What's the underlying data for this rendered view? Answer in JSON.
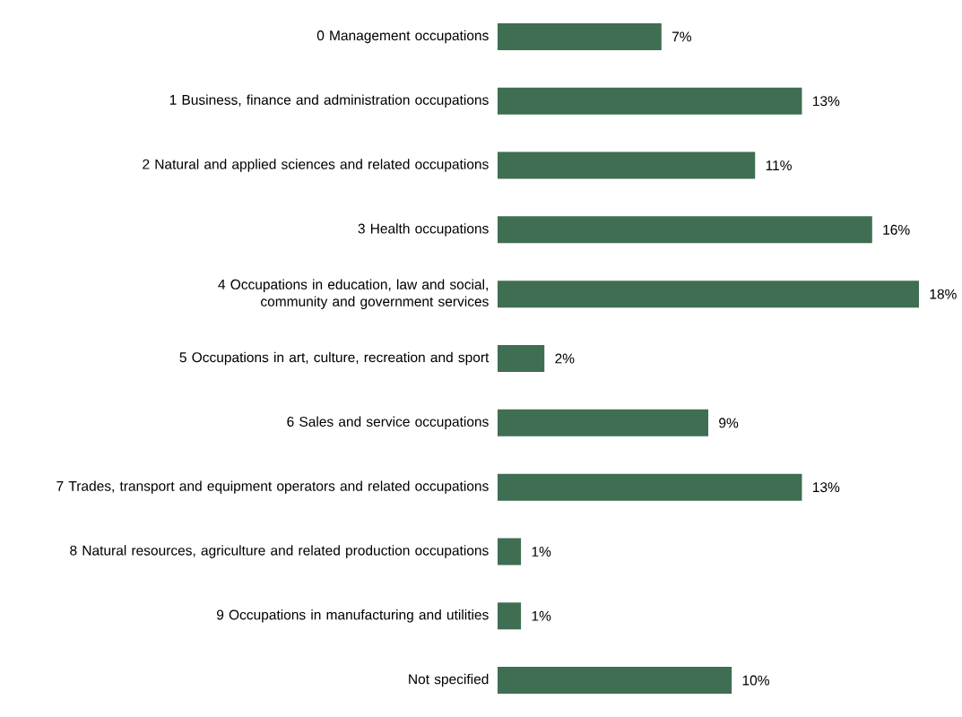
{
  "chart_data": {
    "type": "bar",
    "orientation": "horizontal",
    "color": "#3f6e52",
    "categories": [
      "0 Management occupations",
      "1 Business, finance and administration occupations",
      "2 Natural and applied sciences and related occupations",
      "3 Health occupations",
      "4 Occupations in education, law and social, community and government services",
      "5 Occupations in art, culture, recreation and sport",
      "6 Sales and service occupations",
      "7 Trades, transport and equipment operators and related occupations",
      "8 Natural resources, agriculture and related production occupations",
      "9 Occupations in manufacturing and utilities",
      "Not specified"
    ],
    "values": [
      7,
      13,
      11,
      16,
      18,
      2,
      9,
      13,
      1,
      1,
      10
    ],
    "value_labels": [
      "7%",
      "13%",
      "11%",
      "16%",
      "18%",
      "2%",
      "9%",
      "13%",
      "1%",
      "1%",
      "10%"
    ]
  }
}
